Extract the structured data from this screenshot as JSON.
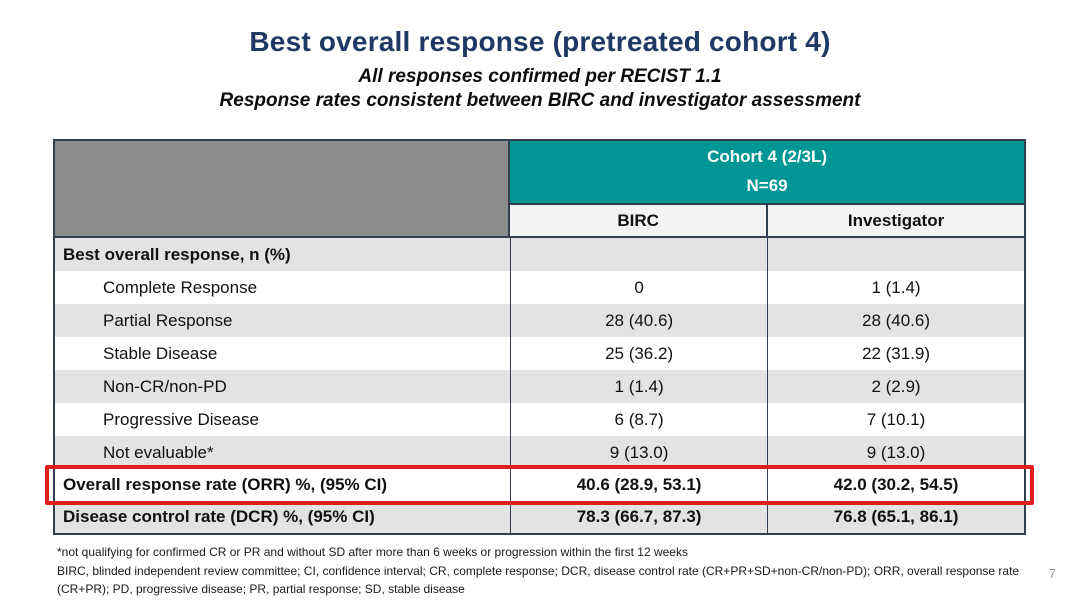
{
  "slide": {
    "title": "Best overall response (pretreated cohort 4)",
    "subtitle_line1": "All responses confirmed per RECIST 1.1",
    "subtitle_line2": "Response rates consistent between BIRC and investigator assessment",
    "page_number": "7"
  },
  "table": {
    "group_header": {
      "line1": "Cohort 4 (2/3L)",
      "line2": "N=69"
    },
    "column_headers": [
      "BIRC",
      "Investigator"
    ],
    "rows": [
      {
        "label": "Best overall response, n (%)",
        "birc": "",
        "investigator": ""
      },
      {
        "label": "Complete Response",
        "birc": "0",
        "investigator": "1 (1.4)"
      },
      {
        "label": "Partial Response",
        "birc": "28 (40.6)",
        "investigator": "28 (40.6)"
      },
      {
        "label": "Stable Disease",
        "birc": "25 (36.2)",
        "investigator": "22 (31.9)"
      },
      {
        "label": "Non-CR/non-PD",
        "birc": "1 (1.4)",
        "investigator": "2 (2.9)"
      },
      {
        "label": "Progressive Disease",
        "birc": "6 (8.7)",
        "investigator": "7 (10.1)"
      },
      {
        "label": "Not evaluable*",
        "birc": "9 (13.0)",
        "investigator": "9 (13.0)"
      },
      {
        "label": "Overall response rate (ORR) %, (95% CI)",
        "birc": "40.6 (28.9, 53.1)",
        "investigator": "42.0 (30.2, 54.5)"
      },
      {
        "label": "Disease control rate (DCR) %, (95% CI)",
        "birc": "78.3 (66.7, 87.3)",
        "investigator": "76.8 (65.1, 86.1)"
      }
    ]
  },
  "footnotes": [
    "*not qualifying for confirmed CR or PR and without SD after more than 6 weeks or progression within the first 12 weeks",
    "BIRC, blinded independent review committee; CI, confidence interval; CR, complete response; DCR, disease control rate (CR+PR+SD+non-CR/non-PD); ORR, overall response rate",
    "(CR+PR); PD, progressive disease; PR, partial response; SD, stable disease"
  ],
  "colors": {
    "title_navy": "#1F3864",
    "header_teal": "#009696",
    "header_gray": "#8C8C8C",
    "row_shade": "#E3E3E3",
    "table_border": "#333F4F",
    "highlight_red": "#E01E1E"
  }
}
